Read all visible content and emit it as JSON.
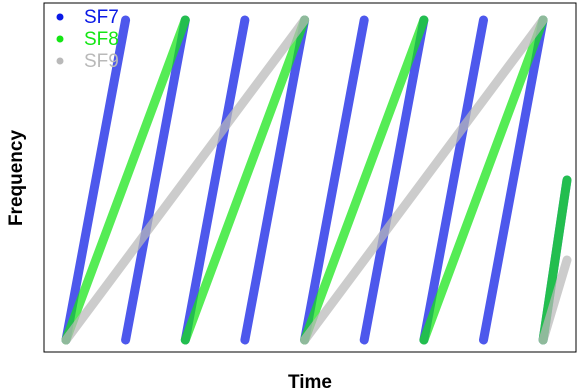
{
  "chart_data": {
    "type": "line",
    "title": "",
    "xlabel": "Time",
    "ylabel": "Frequency",
    "xlim": [
      0,
      8.4
    ],
    "ylim": [
      0,
      1
    ],
    "grid": false,
    "legend_placement": "top-left",
    "series": [
      {
        "name": "SF7",
        "color": "#0a19e6",
        "segments": [
          [
            [
              0,
              0
            ],
            [
              1,
              1
            ]
          ],
          [
            [
              1,
              0
            ],
            [
              2,
              1
            ]
          ],
          [
            [
              2,
              0
            ],
            [
              3,
              1
            ]
          ],
          [
            [
              3,
              0
            ],
            [
              4,
              1
            ]
          ],
          [
            [
              4,
              0
            ],
            [
              5,
              1
            ]
          ],
          [
            [
              5,
              0
            ],
            [
              6,
              1
            ]
          ],
          [
            [
              6,
              0
            ],
            [
              7,
              1
            ]
          ],
          [
            [
              7,
              0
            ],
            [
              8,
              1
            ]
          ],
          [
            [
              8,
              0
            ],
            [
              8.4,
              0.5
            ]
          ]
        ]
      },
      {
        "name": "SF8",
        "color": "#14e614",
        "segments": [
          [
            [
              0,
              0
            ],
            [
              2,
              1
            ]
          ],
          [
            [
              2,
              0
            ],
            [
              4,
              1
            ]
          ],
          [
            [
              4,
              0
            ],
            [
              6,
              1
            ]
          ],
          [
            [
              6,
              0
            ],
            [
              8,
              1
            ]
          ],
          [
            [
              8,
              0
            ],
            [
              8.4,
              0.5
            ]
          ]
        ]
      },
      {
        "name": "SF9",
        "color": "#b9b9b9",
        "segments": [
          [
            [
              0,
              0
            ],
            [
              4,
              1
            ]
          ],
          [
            [
              4,
              0
            ],
            [
              8,
              1
            ]
          ],
          [
            [
              8,
              0
            ],
            [
              8.4,
              0.25
            ]
          ]
        ]
      }
    ]
  }
}
